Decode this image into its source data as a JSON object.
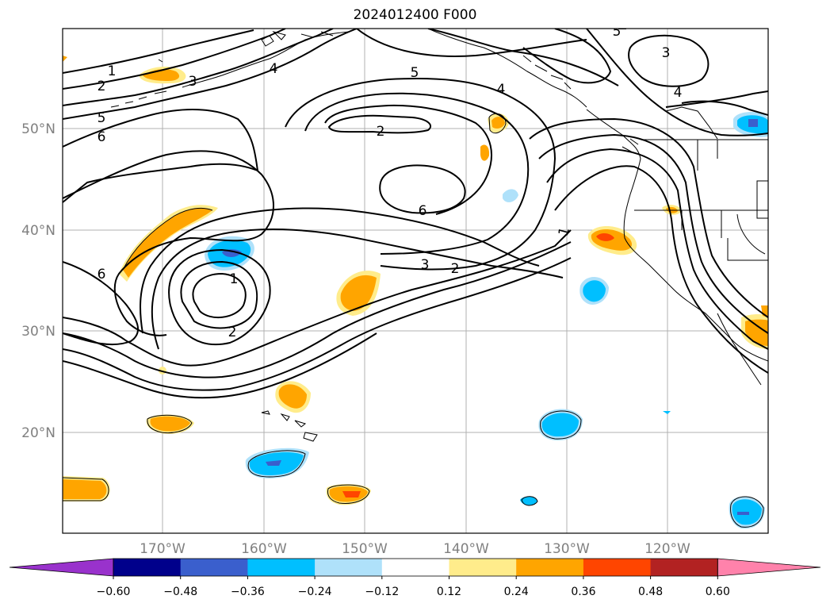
{
  "title": "2024012400 F000",
  "lat_labels": [
    "50°N",
    "40°N",
    "30°N",
    "20°N"
  ],
  "lon_labels": [
    "170°W",
    "160°W",
    "150°W",
    "140°W",
    "130°W",
    "120°W"
  ],
  "colorbar": {
    "colors": [
      "#9932cc",
      "#00008b",
      "#3a5fcd",
      "#00bfff",
      "#afe1fa",
      "#ffffff",
      "#ffec8b",
      "#ffa500",
      "#ff4500",
      "#b22222",
      "#ff82ab"
    ],
    "tick_labels": [
      "−0.60",
      "−0.48",
      "−0.36",
      "−0.24",
      "−0.12",
      "0.12",
      "0.24",
      "0.36",
      "0.48",
      "0.60"
    ]
  },
  "contour_labels": [
    "1",
    "2",
    "3",
    "4",
    "5",
    "6",
    "5",
    "6",
    "5",
    "4",
    "2",
    "6",
    "3",
    "2",
    "1",
    "6",
    "1",
    "2",
    "3",
    "4",
    "5"
  ],
  "colors": {
    "positive_light": "#ffec8b",
    "positive": "#ffa500",
    "positive_strong": "#ff4500",
    "negative_light": "#afe1fa",
    "negative": "#00bfff",
    "negative_strong": "#3a5fcd",
    "grid": "#b0b0b0",
    "contour": "#000000"
  }
}
